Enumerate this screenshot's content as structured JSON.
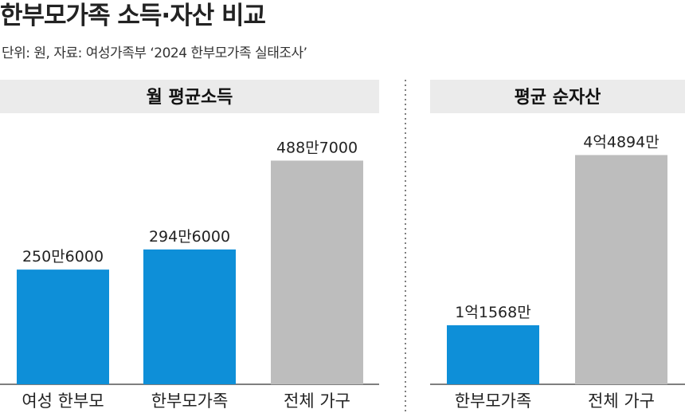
{
  "title": "한부모가족 소득·자산 비교",
  "subtitle": "단위: 원, 자료: 여성가족부 ‘2024 한부모가족 실태조사’",
  "colors": {
    "blue": "#0e8fd8",
    "gray": "#bdbdbd",
    "panel_header": "#ebebeb"
  },
  "chart_data": [
    {
      "type": "bar",
      "title": "월 평균소득",
      "categories": [
        "여성 한부모",
        "한부모가족",
        "전체 가구"
      ],
      "values": [
        2506000,
        2946000,
        4887000
      ],
      "value_labels": [
        "250만6000",
        "294만6000",
        "488만7000"
      ],
      "colors": [
        "#0e8fd8",
        "#0e8fd8",
        "#bdbdbd"
      ],
      "ylim": [
        0,
        5400000
      ]
    },
    {
      "type": "bar",
      "title": "평균 순자산",
      "categories": [
        "한부모가족",
        "전체 가구"
      ],
      "values": [
        115680000,
        448940000
      ],
      "value_labels": [
        "1억1568만",
        "4억4894만"
      ],
      "colors": [
        "#0e8fd8",
        "#bdbdbd"
      ],
      "ylim": [
        0,
        484000000
      ]
    }
  ]
}
